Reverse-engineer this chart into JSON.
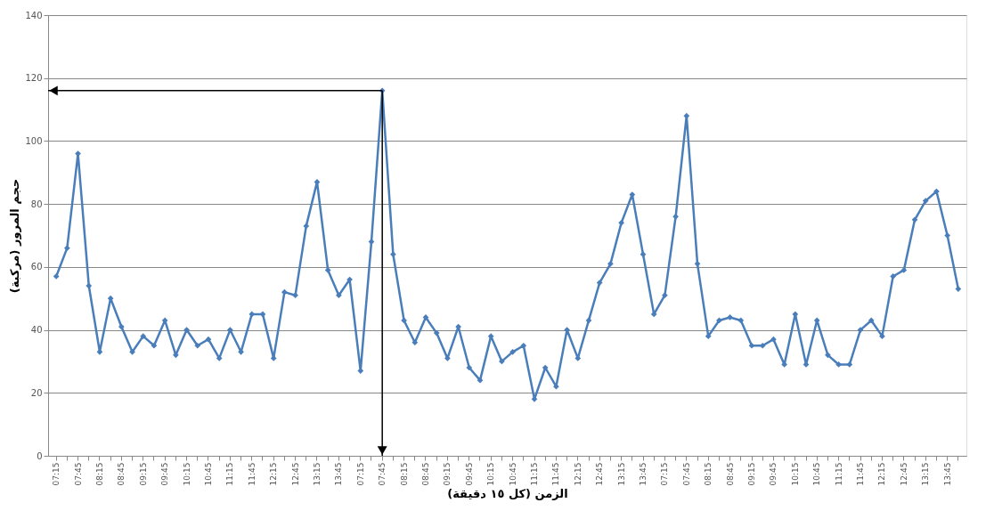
{
  "chart_data": {
    "type": "line",
    "xlabel": "الزمن (كل ١٥ دقيقة)",
    "ylabel": "حجم المرور (مركبة)",
    "categories": [
      "07:15",
      null,
      "07:45",
      null,
      "08:15",
      null,
      "08:45",
      null,
      "09:15",
      null,
      "09:45",
      null,
      "10:15",
      null,
      "10:45",
      null,
      "11:15",
      null,
      "11:45",
      null,
      "12:15",
      null,
      "12:45",
      null,
      "13:15",
      null,
      "13:45",
      null,
      "07:15",
      null,
      "07:45",
      null,
      "08:15",
      null,
      "08:45",
      null,
      "09:15",
      null,
      "09:45",
      null,
      "10:15",
      null,
      "10:45",
      null,
      "11:15",
      null,
      "11:45",
      null,
      "12:15",
      null,
      "12:45",
      null,
      "13:15",
      null,
      "13:45",
      null,
      "07:15",
      null,
      "07:45",
      null,
      "08:15",
      null,
      "08:45",
      null,
      "09:15",
      null,
      "09:45",
      null,
      "10:15",
      null,
      "10:45",
      null,
      "11:15",
      null,
      "11:45",
      null,
      "12:15",
      null,
      "12:45",
      null,
      "13:15",
      null,
      "13:45",
      null
    ],
    "series": [
      {
        "color": "#4a7ebb",
        "values": [
          57,
          66,
          96,
          54,
          33,
          50,
          41,
          33,
          38,
          35,
          43,
          32,
          40,
          35,
          37,
          31,
          40,
          33,
          45,
          45,
          31,
          52,
          51,
          73,
          87,
          59,
          51,
          56,
          27,
          68,
          116,
          64,
          43,
          36,
          44,
          39,
          31,
          41,
          28,
          24,
          38,
          30,
          33,
          35,
          18,
          28,
          22,
          40,
          31,
          43,
          55,
          61,
          74,
          83,
          64,
          45,
          51,
          76,
          108,
          61,
          38,
          43,
          44,
          43,
          35,
          35,
          37,
          29,
          45,
          29,
          43,
          32,
          29,
          29,
          40,
          43,
          38,
          57,
          59,
          75,
          81,
          84,
          70,
          53
        ]
      }
    ],
    "ylim": [
      0,
      140
    ],
    "yticks": [
      0,
      20,
      40,
      60,
      80,
      100,
      120,
      140
    ],
    "grid": "y",
    "marker": "diamond",
    "line_style": "solid"
  }
}
